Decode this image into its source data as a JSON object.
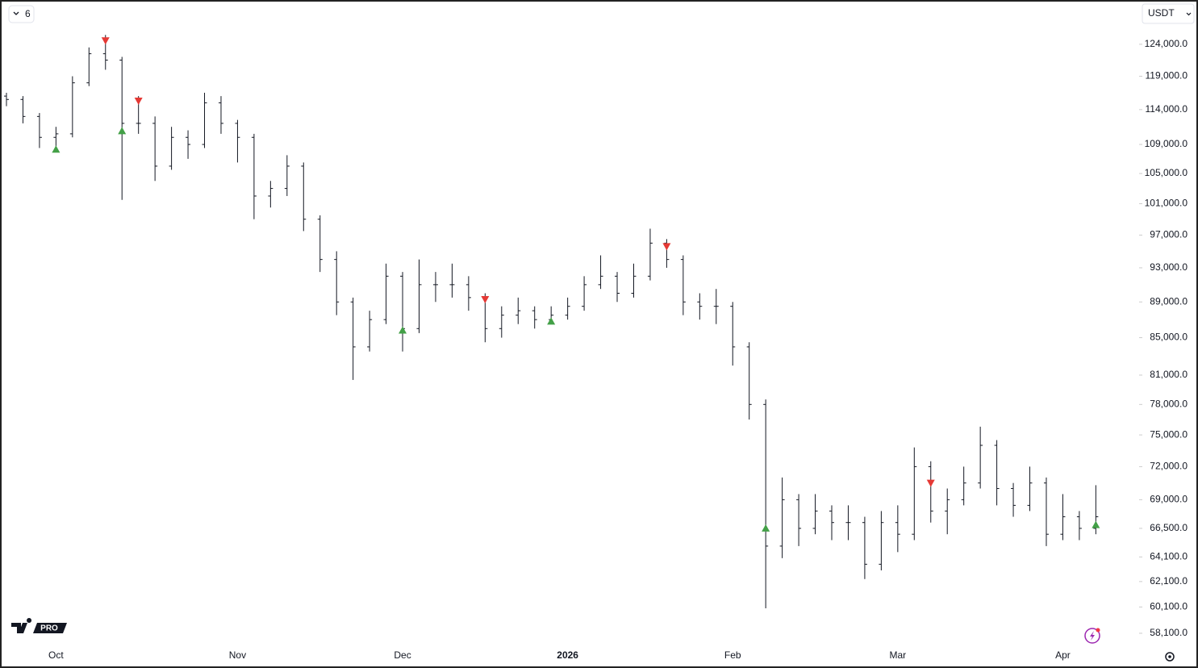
{
  "toolbar": {
    "interval": "6",
    "currency": "USDT",
    "badge": "PRO"
  },
  "chart_data": {
    "type": "ohlc",
    "log_scale": true,
    "grid": false,
    "color": "#131722",
    "categories": [
      null,
      null,
      null,
      "Oct",
      null,
      null,
      null,
      null,
      null,
      null,
      null,
      null,
      null,
      null,
      "Nov",
      null,
      null,
      null,
      null,
      null,
      null,
      null,
      null,
      null,
      "Dec",
      null,
      null,
      null,
      null,
      null,
      null,
      null,
      null,
      null,
      "2026",
      null,
      null,
      null,
      null,
      null,
      null,
      null,
      null,
      null,
      "Feb",
      null,
      null,
      null,
      null,
      null,
      null,
      null,
      null,
      null,
      "Mar",
      null,
      null,
      null,
      null,
      null,
      null,
      null,
      null,
      null,
      "Apr",
      null,
      null
    ],
    "open": [
      116000,
      115500,
      113000,
      110000,
      110500,
      118000,
      122500,
      121500,
      112000,
      112000,
      106000,
      110000,
      109000,
      115000,
      112000,
      110000,
      102000,
      103000,
      106000,
      99000,
      94000,
      89000,
      84000,
      87000,
      92000,
      86000,
      91000,
      91000,
      91000,
      89500,
      86000,
      87500,
      88000,
      87000,
      87500,
      88500,
      91000,
      92000,
      90000,
      92000,
      96000,
      94000,
      89000,
      88500,
      88500,
      84000,
      78000,
      65000,
      69000,
      66500,
      68000,
      67000,
      67000,
      63500,
      67000,
      66000,
      72000,
      68000,
      69000,
      70500,
      74000,
      70000,
      68500,
      70500,
      66000,
      67500,
      66500
    ],
    "high": [
      116500,
      116000,
      113500,
      111500,
      119000,
      123500,
      125500,
      122000,
      116000,
      113000,
      111500,
      111000,
      116500,
      116000,
      112500,
      110500,
      104000,
      107500,
      106500,
      99500,
      95000,
      89500,
      88000,
      93500,
      92500,
      94000,
      92500,
      93500,
      92000,
      90000,
      88500,
      89500,
      88500,
      88500,
      89500,
      92000,
      94500,
      92500,
      93500,
      97800,
      96500,
      94500,
      90000,
      90500,
      89000,
      84500,
      78500,
      71000,
      69500,
      69500,
      68500,
      68500,
      67500,
      68000,
      68500,
      73800,
      72500,
      70000,
      72000,
      75800,
      74500,
      70500,
      72000,
      71000,
      69500,
      68000,
      70300
    ],
    "low": [
      114500,
      112000,
      108500,
      108500,
      110000,
      117500,
      120000,
      101500,
      110500,
      104000,
      105500,
      107000,
      108500,
      110500,
      106500,
      99000,
      100500,
      102000,
      97500,
      92500,
      87500,
      80500,
      83500,
      86500,
      83500,
      85500,
      89000,
      89500,
      88000,
      84500,
      85000,
      86500,
      86000,
      86500,
      87000,
      88000,
      90500,
      89000,
      89500,
      91500,
      93000,
      87500,
      87000,
      86500,
      82000,
      76500,
      60000,
      64000,
      65000,
      66000,
      65500,
      65500,
      62300,
      63000,
      64500,
      65500,
      67000,
      66000,
      68500,
      70000,
      68500,
      67500,
      68000,
      65000,
      65500,
      65500,
      66000
    ],
    "close": [
      115500,
      113000,
      110000,
      110500,
      118000,
      122500,
      121500,
      112000,
      112000,
      106000,
      110000,
      109000,
      115000,
      112000,
      110000,
      102000,
      103000,
      106000,
      99000,
      94000,
      89000,
      84000,
      87000,
      92000,
      86000,
      91000,
      91000,
      91000,
      89500,
      86000,
      87500,
      88000,
      87000,
      87500,
      88500,
      91000,
      92000,
      90000,
      92000,
      96000,
      94000,
      89000,
      88500,
      88500,
      84000,
      78000,
      65000,
      69000,
      66500,
      68000,
      67000,
      67000,
      63500,
      67000,
      66000,
      72000,
      68000,
      69000,
      70500,
      74000,
      70000,
      68500,
      70500,
      66000,
      67500,
      66500,
      67500
    ],
    "buy_signals": {
      "color": "#43a047",
      "bars": [
        3,
        7,
        24,
        33,
        46,
        66
      ],
      "values": [
        108300,
        110900,
        85800,
        86800,
        66500,
        66800
      ]
    },
    "sell_signals": {
      "color": "#e53935",
      "bars": [
        6,
        8,
        29,
        40,
        56
      ],
      "values": [
        124600,
        115300,
        89300,
        95600,
        70500
      ]
    },
    "ylim": [
      57200,
      131000
    ],
    "yticks": [
      {
        "value": 124000,
        "label": "124,000.0"
      },
      {
        "value": 119000,
        "label": "119,000.0"
      },
      {
        "value": 114000,
        "label": "114,000.0"
      },
      {
        "value": 109000,
        "label": "109,000.0"
      },
      {
        "value": 105000,
        "label": "105,000.0"
      },
      {
        "value": 101000,
        "label": "101,000.0"
      },
      {
        "value": 97000,
        "label": "97,000.0"
      },
      {
        "value": 93000,
        "label": "93,000.0"
      },
      {
        "value": 89000,
        "label": "89,000.0"
      },
      {
        "value": 85000,
        "label": "85,000.0"
      },
      {
        "value": 81000,
        "label": "81,000.0"
      },
      {
        "value": 78000,
        "label": "78,000.0"
      },
      {
        "value": 75000,
        "label": "75,000.0"
      },
      {
        "value": 72000,
        "label": "72,000.0"
      },
      {
        "value": 69000,
        "label": "69,000.0"
      },
      {
        "value": 66500,
        "label": "66,500.0"
      },
      {
        "value": 64100,
        "label": "64,100.0"
      },
      {
        "value": 62100,
        "label": "62,100.0"
      },
      {
        "value": 60100,
        "label": "60,100.0"
      },
      {
        "value": 58100,
        "label": "58,100.0"
      }
    ]
  }
}
